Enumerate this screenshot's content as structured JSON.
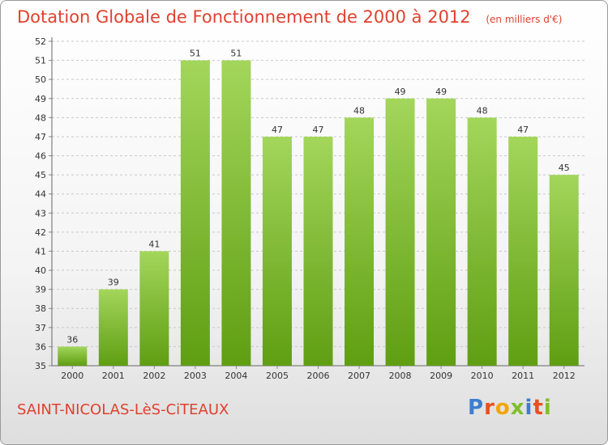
{
  "header": {
    "title": "Dotation Globale de Fonctionnement de 2000 à 2012",
    "subtitle": "(en milliers d'€)"
  },
  "footer": {
    "place": "SAINT-NICOLAS-LèS-CiTEAUX",
    "logo": "Proxiti"
  },
  "colors": {
    "title": "#e0412f",
    "bar_top": "#a3d65b",
    "bar_bottom": "#5f9e12",
    "grid": "#c8c8c8"
  },
  "chart_data": {
    "type": "bar",
    "title": "Dotation Globale de Fonctionnement de 2000 à 2012",
    "categories": [
      "2000",
      "2001",
      "2002",
      "2003",
      "2004",
      "2005",
      "2006",
      "2007",
      "2008",
      "2009",
      "2010",
      "2011",
      "2012"
    ],
    "values": [
      36,
      39,
      41,
      51,
      51,
      47,
      47,
      48,
      49,
      49,
      48,
      47,
      45
    ],
    "ylim": [
      35,
      52
    ],
    "yticks": [
      35,
      36,
      37,
      38,
      39,
      40,
      41,
      42,
      43,
      44,
      45,
      46,
      47,
      48,
      49,
      50,
      51,
      52
    ],
    "grid": true,
    "data_labels": true
  }
}
